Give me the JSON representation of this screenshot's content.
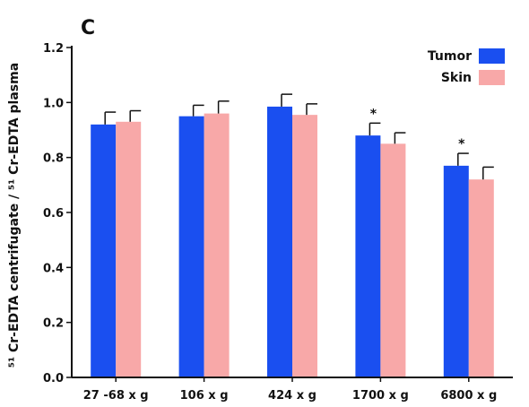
{
  "panel_label": "C",
  "chart_data": {
    "type": "bar",
    "title": "",
    "xlabel": "",
    "ylabel": "⁵¹ Cr-EDTA centrifugate / ⁵¹ Cr-EDTA plasma",
    "ylim": [
      0,
      1.2
    ],
    "yticks": [
      "0.0",
      "0.2",
      "0.4",
      "0.6",
      "0.8",
      "1.0",
      "1.2"
    ],
    "categories": [
      "27 -68 x g",
      "106 x g",
      "424 x g",
      "1700 x g",
      "6800 x g"
    ],
    "series": [
      {
        "name": "Tumor",
        "color": "#1a4ff0",
        "values": [
          0.92,
          0.95,
          0.985,
          0.88,
          0.77
        ],
        "errors": [
          0.045,
          0.04,
          0.045,
          0.045,
          0.045
        ]
      },
      {
        "name": "Skin",
        "color": "#f8a8a8",
        "values": [
          0.93,
          0.96,
          0.955,
          0.85,
          0.72
        ],
        "errors": [
          0.04,
          0.045,
          0.04,
          0.04,
          0.045
        ]
      }
    ],
    "annotations": [
      "",
      "",
      "",
      "*",
      "*"
    ],
    "legend_position": "top-right",
    "grid": false
  }
}
